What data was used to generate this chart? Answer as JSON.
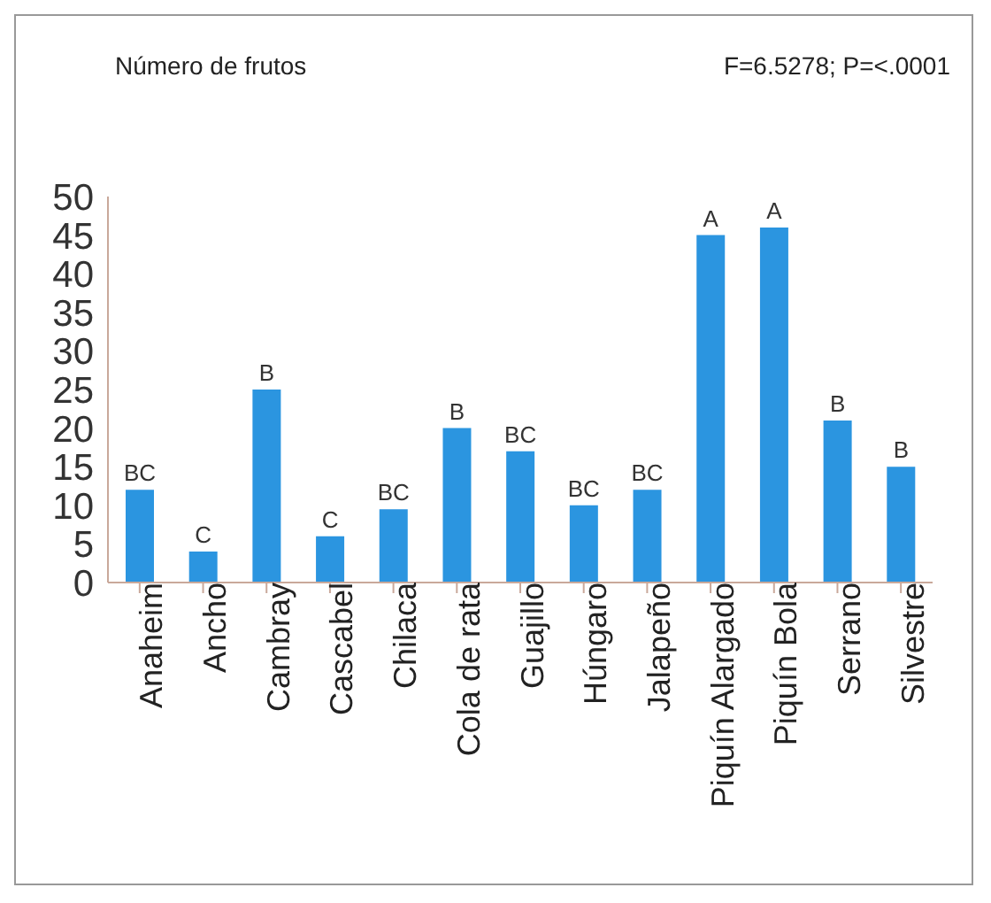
{
  "chart_data": {
    "type": "bar",
    "title": "Número de frutos",
    "annotations": [
      "F=6.5278; P=<.0001"
    ],
    "categories": [
      "Anaheim",
      "Ancho",
      "Cambray",
      "Cascabel",
      "Chilaca",
      "Cola de rata",
      "Guajillo",
      "Húngaro",
      "Jalapeño",
      "Piquín Alargado",
      "Piquín Bola",
      "Serrano",
      "Silvestre"
    ],
    "values": [
      12,
      4,
      25,
      6,
      9.5,
      20,
      17,
      10,
      12,
      45,
      46,
      21,
      15
    ],
    "value_labels": [
      "BC",
      "C",
      "B",
      "C",
      "BC",
      "B",
      "BC",
      "BC",
      "BC",
      "A",
      "A",
      "B",
      "B"
    ],
    "color": "#2b95e0",
    "ylim": [
      0,
      50
    ],
    "yticks": [
      0,
      5,
      10,
      15,
      20,
      25,
      30,
      35,
      40,
      45,
      50
    ],
    "grid": false
  }
}
